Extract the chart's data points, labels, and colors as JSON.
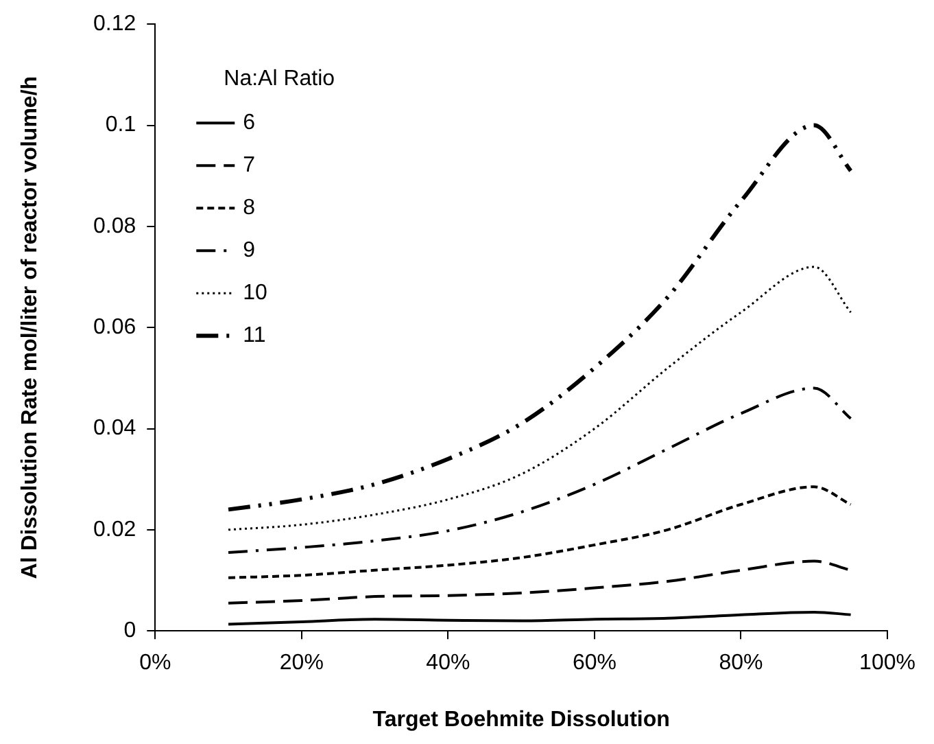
{
  "chart_data": {
    "type": "line",
    "xlabel": "Target Boehmite Dissolution",
    "ylabel": "Al Dissolution Rate mol/liter of reactor volume/h",
    "legend_title": "Na:Al Ratio",
    "legend": "top left",
    "grid": false,
    "marker": "none",
    "x": [
      0.1,
      0.2,
      0.3,
      0.4,
      0.5,
      0.6,
      0.7,
      0.8,
      0.9,
      0.95
    ],
    "xlim": [
      0,
      1
    ],
    "xticks": [
      {
        "value": 0,
        "label": "0%"
      },
      {
        "value": 0.2,
        "label": "20%"
      },
      {
        "value": 0.4,
        "label": "40%"
      },
      {
        "value": 0.6,
        "label": "60%"
      },
      {
        "value": 0.8,
        "label": "80%"
      },
      {
        "value": 1,
        "label": "100%"
      }
    ],
    "ylim": [
      0,
      0.12
    ],
    "yticks": [
      0,
      0.02,
      0.04,
      0.06,
      0.08,
      0.1,
      0.12
    ],
    "series": [
      {
        "name": "6",
        "color": "#000000",
        "line_style": "solid",
        "values": [
          0.0013,
          0.0018,
          0.0023,
          0.0021,
          0.002,
          0.0023,
          0.0025,
          0.0032,
          0.0037,
          0.0032
        ]
      },
      {
        "name": "7",
        "color": "#000000",
        "line_style": "dashed",
        "values": [
          0.0055,
          0.006,
          0.0068,
          0.007,
          0.0075,
          0.0085,
          0.0098,
          0.012,
          0.0138,
          0.012
        ]
      },
      {
        "name": "8",
        "color": "#000000",
        "line_style": "dashed",
        "values": [
          0.0105,
          0.011,
          0.012,
          0.013,
          0.0145,
          0.017,
          0.02,
          0.025,
          0.0285,
          0.025
        ]
      },
      {
        "name": "9",
        "color": "#000000",
        "line_style": "dashdot",
        "values": [
          0.0155,
          0.0165,
          0.0178,
          0.0198,
          0.0235,
          0.029,
          0.036,
          0.043,
          0.048,
          0.042
        ]
      },
      {
        "name": "10",
        "color": "#000000",
        "line_style": "dotted",
        "values": [
          0.02,
          0.021,
          0.023,
          0.026,
          0.031,
          0.04,
          0.052,
          0.063,
          0.072,
          0.063
        ]
      },
      {
        "name": "11",
        "color": "#000000",
        "line_style": "dashdotdot",
        "values": [
          0.024,
          0.026,
          0.029,
          0.034,
          0.041,
          0.052,
          0.066,
          0.085,
          0.1,
          0.091
        ]
      }
    ]
  }
}
